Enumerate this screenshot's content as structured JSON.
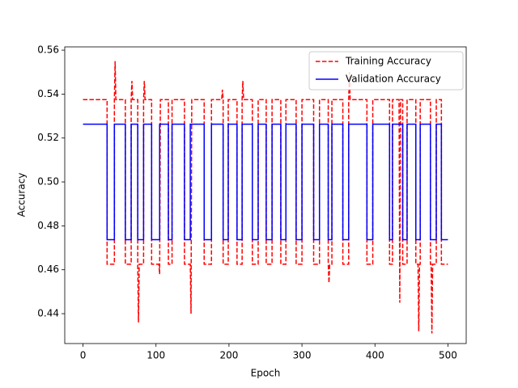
{
  "chart_data": {
    "type": "line",
    "x_label": "Epoch",
    "y_label": "Accuracy",
    "xlim": [
      -25,
      525
    ],
    "xticks": [
      0,
      100,
      200,
      300,
      400,
      500
    ],
    "ylim": [
      0.4264,
      0.5615
    ],
    "yticks": [
      0.44,
      0.46,
      0.48,
      {
        "value": 0.5,
        "label": "0.50"
      },
      0.52,
      0.54,
      0.56
    ],
    "legend": "upper right",
    "series": [
      {
        "name": "Training Accuracy",
        "color": "#ff0000",
        "linestyle": "dashed",
        "x": [
          0,
          33,
          33,
          43,
          43,
          44,
          45,
          58,
          58,
          66,
          66,
          67,
          68,
          75,
          75,
          76,
          77,
          83,
          83,
          84,
          85,
          94,
          94,
          104,
          105,
          106,
          117,
          117,
          122,
          122,
          139,
          139,
          147,
          148,
          149,
          166,
          166,
          176,
          176,
          190,
          191,
          192,
          192,
          199,
          199,
          211,
          211,
          218,
          218,
          219,
          220,
          232,
          232,
          240,
          240,
          251,
          251,
          259,
          259,
          271,
          271,
          278,
          278,
          292,
          292,
          300,
          300,
          316,
          316,
          324,
          324,
          336,
          336,
          337,
          338,
          341,
          341,
          356,
          356,
          364,
          364,
          365,
          366,
          389,
          389,
          397,
          397,
          420,
          420,
          424,
          424,
          433,
          434,
          435,
          438,
          438,
          444,
          444,
          456,
          456,
          459,
          460,
          461,
          462,
          462,
          476,
          476,
          477,
          478,
          479,
          484,
          484,
          491,
          491,
          500
        ],
        "values": [
          0.5375,
          0.5375,
          0.4625,
          0.4625,
          0.5375,
          0.555,
          0.5375,
          0.5375,
          0.4625,
          0.4625,
          0.5375,
          0.546,
          0.5375,
          0.5375,
          0.4625,
          0.436,
          0.4625,
          0.4625,
          0.5375,
          0.546,
          0.5375,
          0.5375,
          0.4625,
          0.4625,
          0.458,
          0.5375,
          0.5375,
          0.4625,
          0.4625,
          0.5375,
          0.5375,
          0.4625,
          0.4625,
          0.44,
          0.5375,
          0.5375,
          0.4625,
          0.4625,
          0.5375,
          0.5375,
          0.542,
          0.5375,
          0.4625,
          0.4625,
          0.5375,
          0.5375,
          0.4625,
          0.4625,
          0.5375,
          0.546,
          0.5375,
          0.5375,
          0.4625,
          0.4625,
          0.5375,
          0.5375,
          0.4625,
          0.4625,
          0.5375,
          0.5375,
          0.4625,
          0.4625,
          0.5375,
          0.5375,
          0.4625,
          0.4625,
          0.5375,
          0.5375,
          0.4625,
          0.4625,
          0.5375,
          0.5375,
          0.4625,
          0.454,
          0.4625,
          0.4625,
          0.5375,
          0.5375,
          0.4625,
          0.4625,
          0.5375,
          0.55,
          0.5375,
          0.5375,
          0.4625,
          0.4625,
          0.5375,
          0.5375,
          0.4625,
          0.4625,
          0.5375,
          0.5375,
          0.445,
          0.5375,
          0.5375,
          0.4625,
          0.4625,
          0.5375,
          0.5375,
          0.4625,
          0.4625,
          0.432,
          0.4625,
          0.4625,
          0.5375,
          0.5375,
          0.4625,
          0.4625,
          0.431,
          0.4625,
          0.4625,
          0.5375,
          0.5375,
          0.4625,
          0.4625
        ]
      },
      {
        "name": "Validation Accuracy",
        "color": "#0000ff",
        "linestyle": "solid",
        "x": [
          0,
          33,
          33,
          43,
          43,
          58,
          58,
          66,
          66,
          75,
          75,
          83,
          83,
          94,
          94,
          105,
          105,
          117,
          117,
          122,
          122,
          139,
          139,
          147,
          147,
          166,
          166,
          176,
          176,
          192,
          192,
          199,
          199,
          211,
          211,
          218,
          218,
          232,
          232,
          240,
          240,
          251,
          251,
          259,
          259,
          271,
          271,
          278,
          278,
          292,
          292,
          300,
          300,
          316,
          316,
          324,
          324,
          336,
          336,
          341,
          341,
          356,
          356,
          364,
          364,
          389,
          389,
          397,
          397,
          420,
          420,
          424,
          424,
          438,
          438,
          444,
          444,
          456,
          456,
          462,
          462,
          476,
          476,
          484,
          484,
          491,
          491,
          500
        ],
        "values": [
          0.5263,
          0.5263,
          0.4737,
          0.4737,
          0.5263,
          0.5263,
          0.4737,
          0.4737,
          0.5263,
          0.5263,
          0.4737,
          0.4737,
          0.5263,
          0.5263,
          0.4737,
          0.4737,
          0.5263,
          0.5263,
          0.4737,
          0.4737,
          0.5263,
          0.5263,
          0.4737,
          0.4737,
          0.5263,
          0.5263,
          0.4737,
          0.4737,
          0.5263,
          0.5263,
          0.4737,
          0.4737,
          0.5263,
          0.5263,
          0.4737,
          0.4737,
          0.5263,
          0.5263,
          0.4737,
          0.4737,
          0.5263,
          0.5263,
          0.4737,
          0.4737,
          0.5263,
          0.5263,
          0.4737,
          0.4737,
          0.5263,
          0.5263,
          0.4737,
          0.4737,
          0.5263,
          0.5263,
          0.4737,
          0.4737,
          0.5263,
          0.5263,
          0.4737,
          0.4737,
          0.5263,
          0.5263,
          0.4737,
          0.4737,
          0.5263,
          0.5263,
          0.4737,
          0.4737,
          0.5263,
          0.5263,
          0.4737,
          0.4737,
          0.5263,
          0.5263,
          0.4737,
          0.4737,
          0.5263,
          0.5263,
          0.4737,
          0.4737,
          0.5263,
          0.5263,
          0.4737,
          0.4737,
          0.5263,
          0.5263,
          0.4737,
          0.4737
        ]
      }
    ]
  }
}
